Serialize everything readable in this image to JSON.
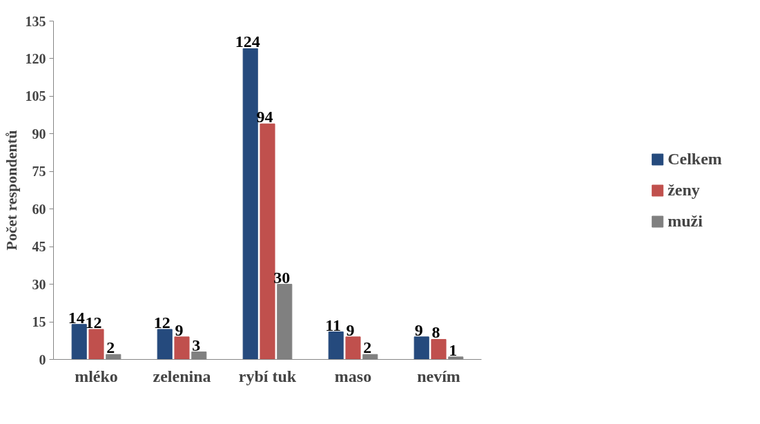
{
  "chart_data": {
    "type": "bar",
    "ylabel": "Počet respondentů",
    "categories": [
      "mléko",
      "zelenina",
      "rybí tuk",
      "maso",
      "nevím"
    ],
    "series": [
      {
        "name": "Celkem",
        "color": "#254a7d",
        "values": [
          14,
          12,
          124,
          11,
          9
        ]
      },
      {
        "name": "ženy",
        "color": "#c0504d",
        "values": [
          12,
          9,
          94,
          9,
          8
        ]
      },
      {
        "name": "muži",
        "color": "#808080",
        "values": [
          2,
          3,
          30,
          2,
          1
        ]
      }
    ],
    "ylim": [
      0,
      135
    ],
    "yticks": [
      0,
      15,
      30,
      45,
      60,
      75,
      90,
      105,
      120,
      135
    ],
    "data_labels": true,
    "grid": false,
    "legend": "right"
  }
}
